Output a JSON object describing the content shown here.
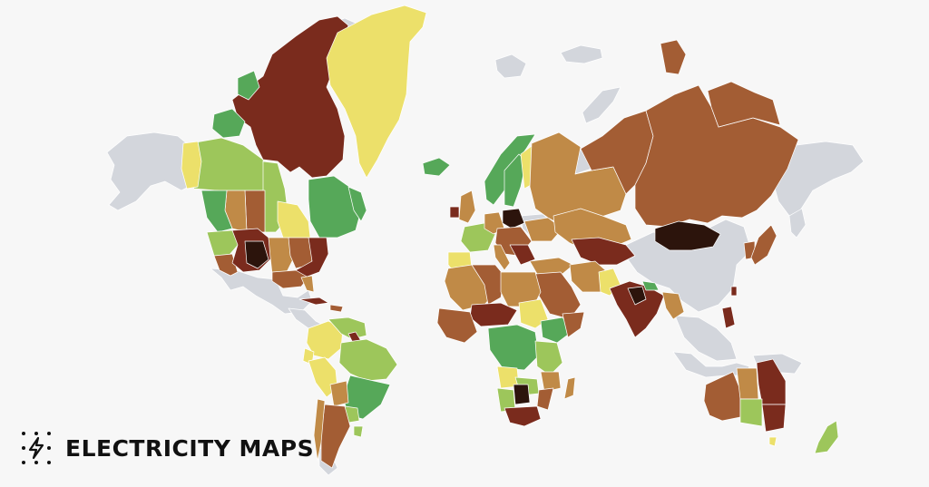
{
  "brand": {
    "name": "ELECTRICITY MAPS",
    "logo_icon": "lightning-bolt-dotted-icon"
  },
  "map": {
    "ocean_color": "#f7f7f7",
    "palette": {
      "no_data": "#d3d6dc",
      "very_low": "#56a859",
      "low": "#9dc65b",
      "medium_low": "#ece06a",
      "medium": "#c08a47",
      "medium_high": "#a35d34",
      "high": "#7a2b1d",
      "very_high": "#2c140c"
    }
  }
}
